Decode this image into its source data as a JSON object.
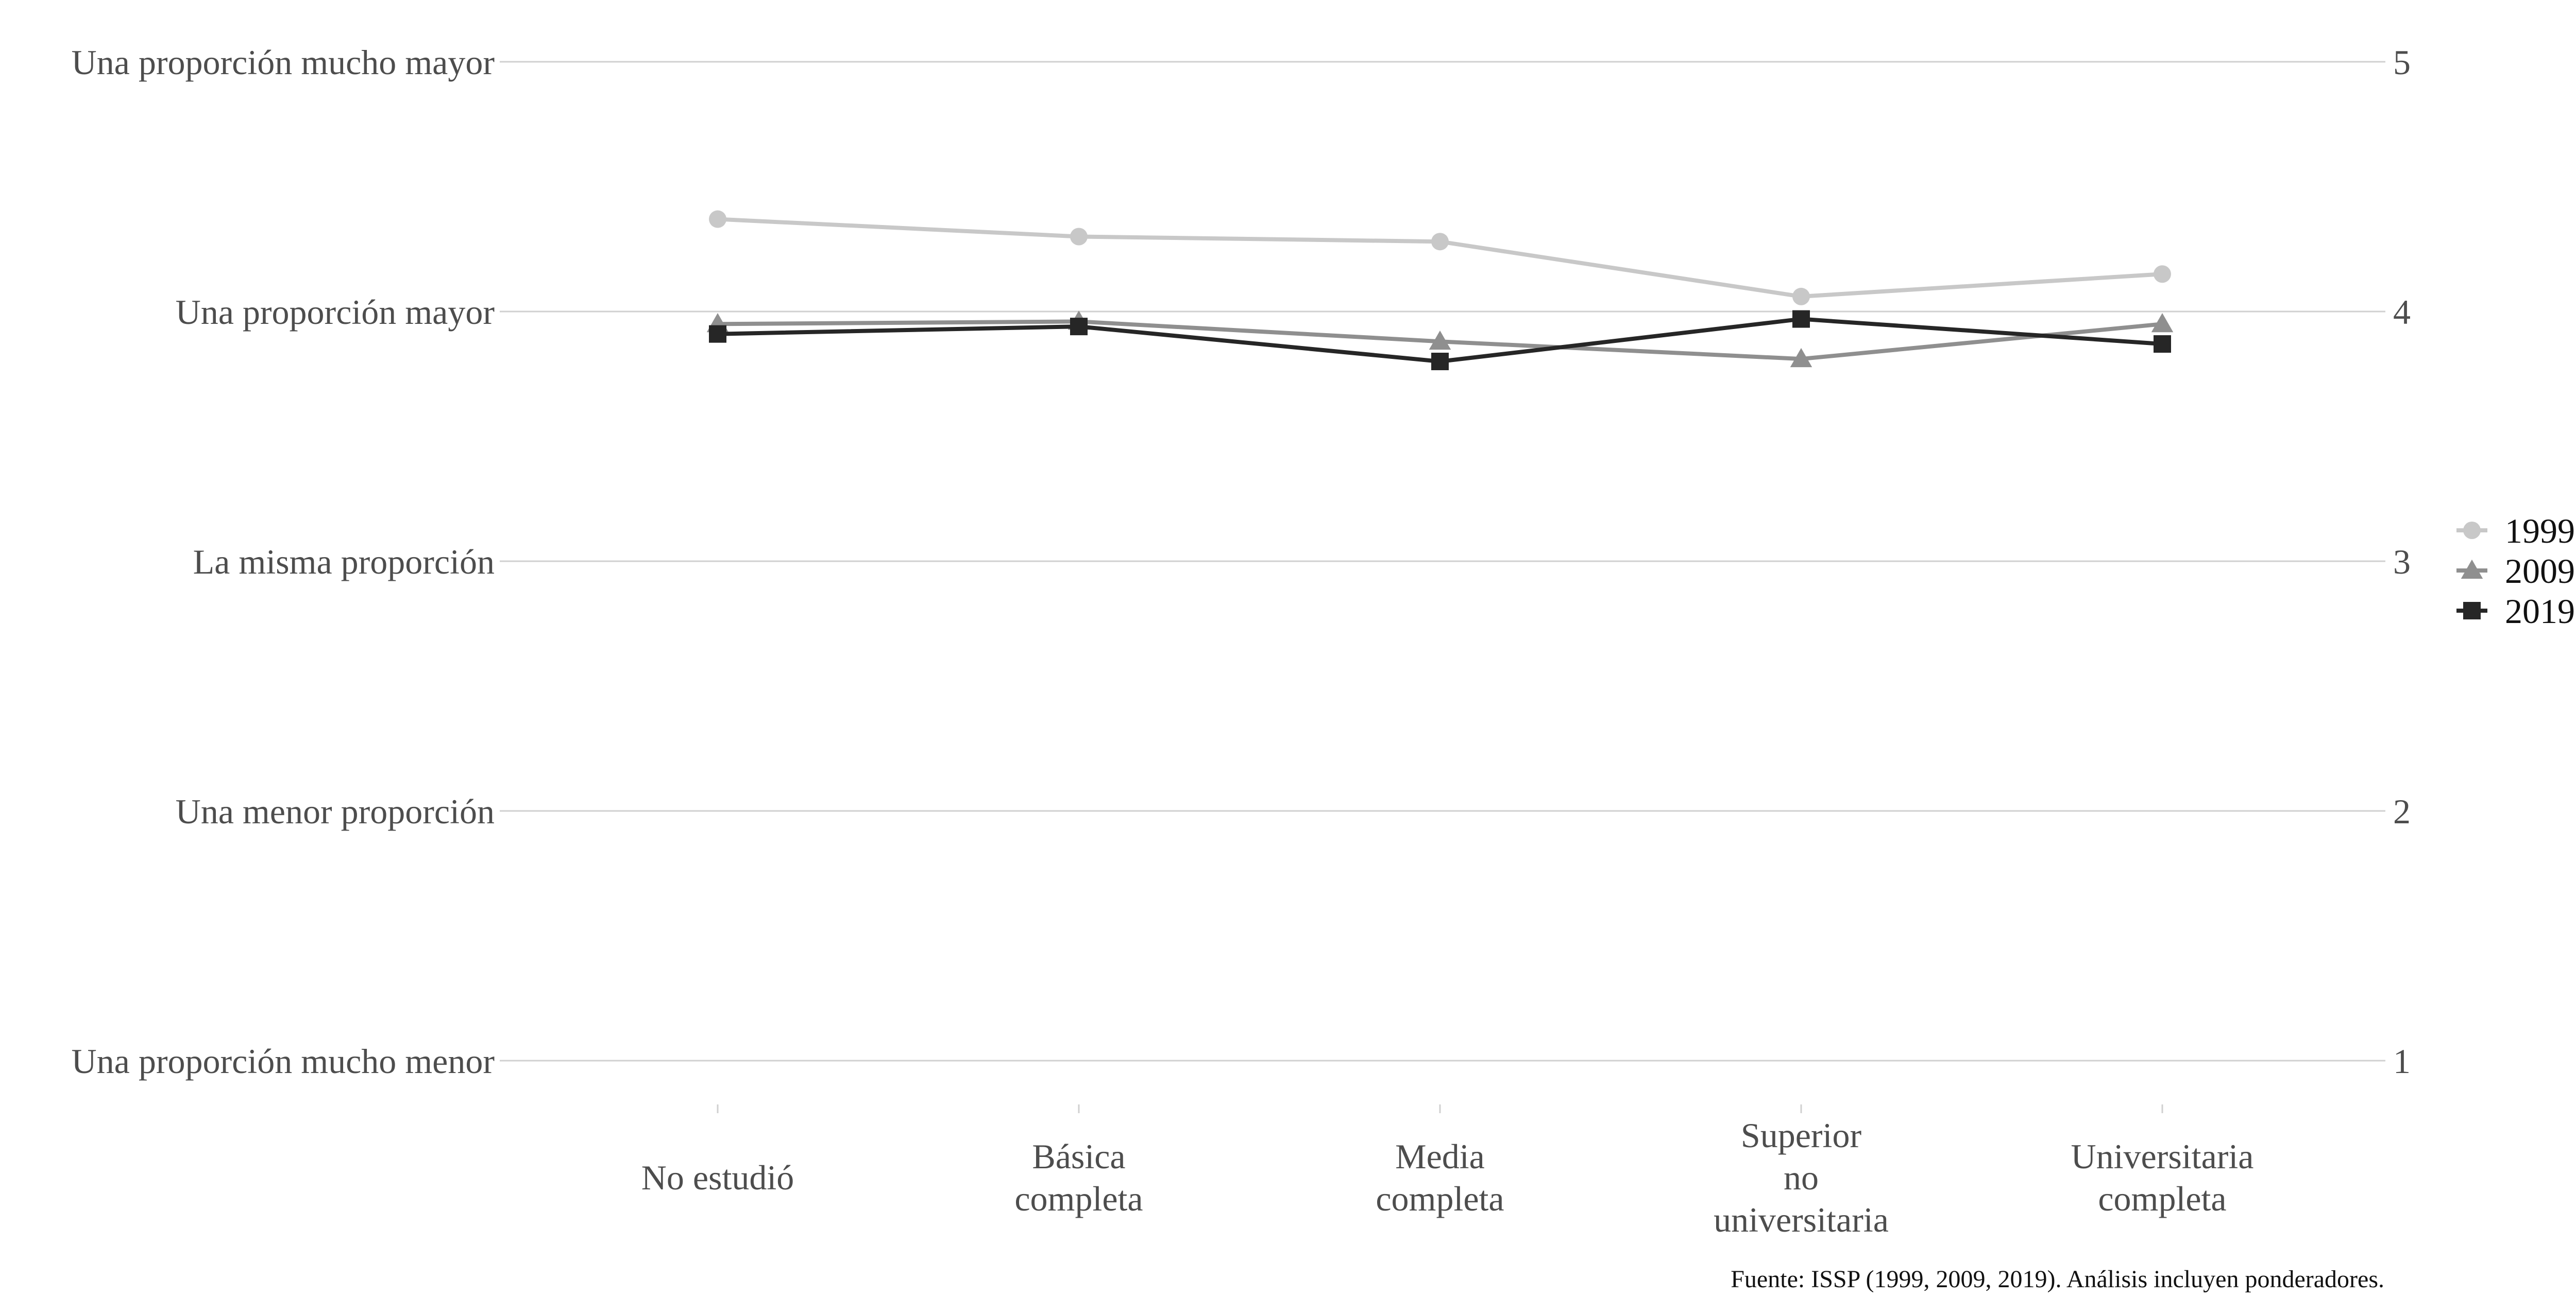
{
  "chart_data": {
    "type": "line",
    "title": "",
    "xlabel": "",
    "ylabel": "",
    "categories": [
      [
        "No estudió"
      ],
      [
        "Básica",
        "completa"
      ],
      [
        "Media",
        "completa"
      ],
      [
        "Superior",
        "no",
        "universitaria"
      ],
      [
        "Universitaria",
        "completa"
      ]
    ],
    "ylim": [
      1,
      5
    ],
    "yticks": [
      1,
      2,
      3,
      4,
      5
    ],
    "ytick_left_labels": [
      "Una proporción mucho menor",
      "Una menor proporción",
      "La misma proporción",
      "Una proporción mayor",
      "Una proporción mucho mayor"
    ],
    "ytick_right_labels": [
      "1",
      "2",
      "3",
      "4",
      "5"
    ],
    "grid": "horizontal",
    "legend_position": "right",
    "series": [
      {
        "name": "1999",
        "marker": "circle",
        "color": "#c8c8c8",
        "values": [
          4.37,
          4.3,
          4.28,
          4.06,
          4.15
        ]
      },
      {
        "name": "2009",
        "marker": "triangle",
        "color": "#8f8f8f",
        "values": [
          3.95,
          3.96,
          3.88,
          3.81,
          3.95
        ]
      },
      {
        "name": "2019",
        "marker": "square",
        "color": "#262626",
        "values": [
          3.91,
          3.94,
          3.8,
          3.97,
          3.87
        ]
      }
    ],
    "caption": "Fuente: ISSP (1999, 2009, 2019). Análisis incluyen ponderadores."
  }
}
